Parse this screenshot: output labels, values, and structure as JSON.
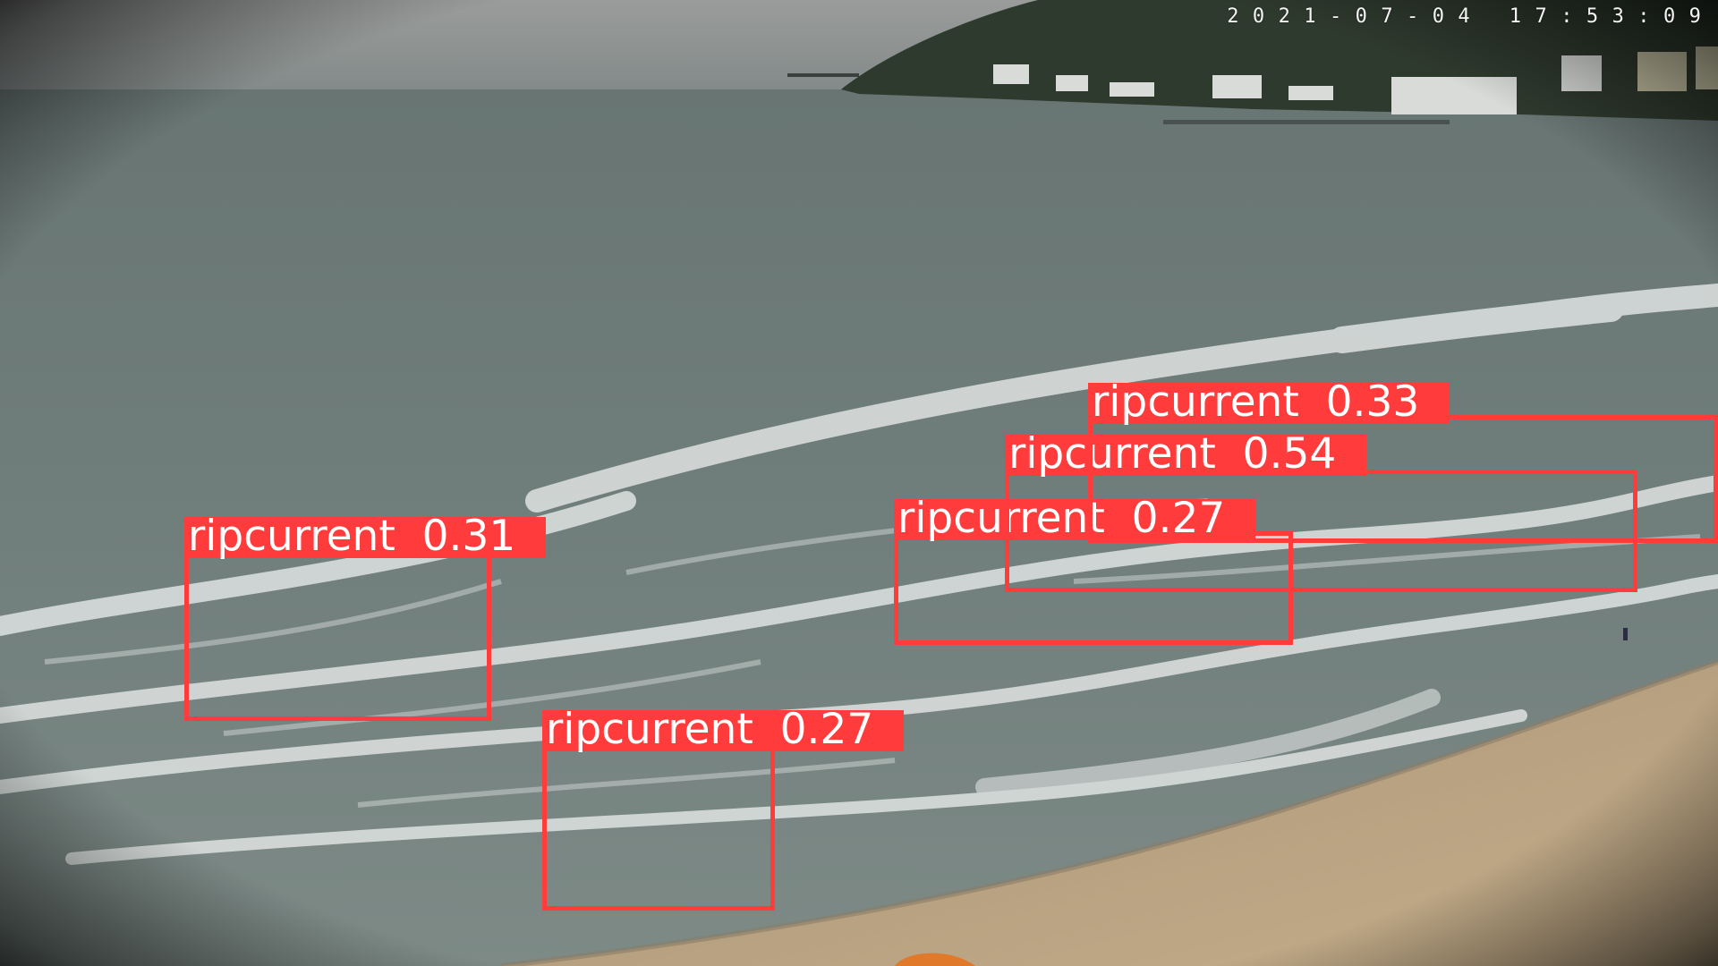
{
  "camera": {
    "timestamp": "2 0 2 1 - 0 7 - 0 4   1 7 : 5 3 : 0 9"
  },
  "colors": {
    "box": "#ff3b3b",
    "label_text": "#ffffff",
    "sea": "#6f7c7a",
    "sky": "#8e9191",
    "sand": "#b59c7a",
    "hill": "#2f3a2e",
    "foam": "#dfe3e2"
  },
  "detections": [
    {
      "id": "d1",
      "label": "ripcurrent",
      "confidence": "0.31",
      "text": "ripcurrent  0.31"
    },
    {
      "id": "d2",
      "label": "ripcurrent",
      "confidence": "0.27",
      "text": "ripcurrent  0.27"
    },
    {
      "id": "d3",
      "label": "ripcurrent",
      "confidence": "0.27",
      "text": "ripcurrent  0.27"
    },
    {
      "id": "d4",
      "label": "ripcurrent",
      "confidence": "0.54",
      "text": "ripcurrent  0.54"
    },
    {
      "id": "d5",
      "label": "ripcurrent",
      "confidence": "0.33",
      "text": "ripcurrent  0.33"
    }
  ]
}
